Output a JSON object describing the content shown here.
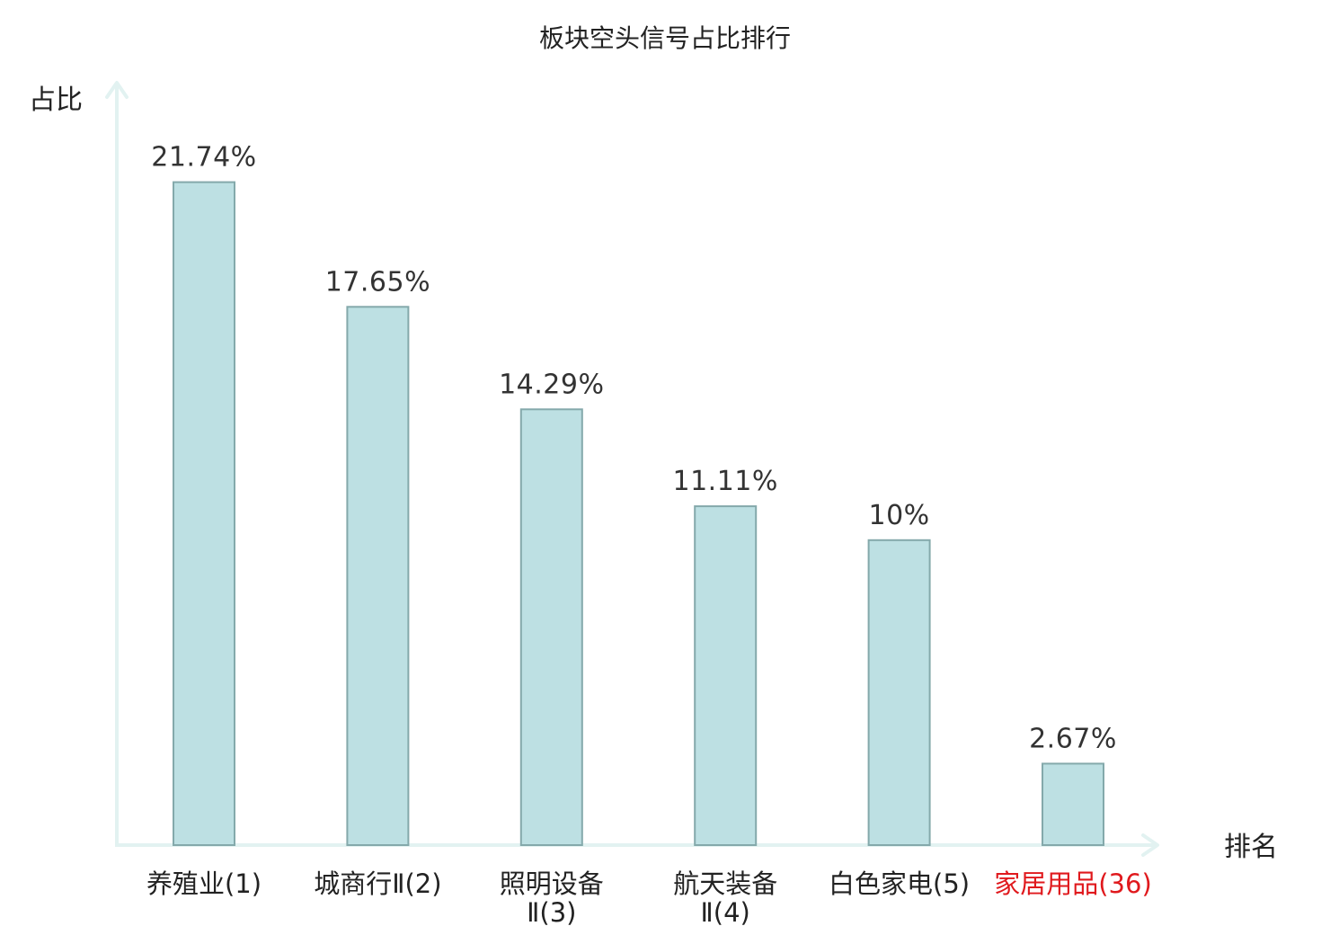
{
  "chart_data": {
    "type": "bar",
    "title": "板块空头信号占比排行",
    "ylabel": "占比",
    "xlabel": "排名",
    "ylim": [
      0,
      25
    ],
    "grid": false,
    "categories": [
      {
        "name": "养殖业",
        "rank": "(1)",
        "lines": [
          "养殖业(1)"
        ],
        "highlight": false
      },
      {
        "name": "城商行Ⅱ",
        "rank": "(2)",
        "lines": [
          "城商行Ⅱ(2)"
        ],
        "highlight": false
      },
      {
        "name": "照明设备Ⅱ",
        "rank": "(3)",
        "lines": [
          "照明设备",
          "Ⅱ(3)"
        ],
        "highlight": false
      },
      {
        "name": "航天装备Ⅱ",
        "rank": "(4)",
        "lines": [
          "航天装备",
          "Ⅱ(4)"
        ],
        "highlight": false
      },
      {
        "name": "白色家电",
        "rank": "(5)",
        "lines": [
          "白色家电(5)"
        ],
        "highlight": false
      },
      {
        "name": "家居用品",
        "rank": "(36)",
        "lines": [
          "家居用品(36)"
        ],
        "highlight": true
      }
    ],
    "values": [
      21.74,
      17.65,
      14.29,
      11.11,
      10,
      2.67
    ],
    "value_labels": [
      "21.74%",
      "17.65%",
      "14.29%",
      "11.11%",
      "10%",
      "2.67%"
    ],
    "colors": {
      "bar_fill": "#bde0e3",
      "bar_stroke": "#84a9ab",
      "axis": "#e2f2f1",
      "highlight_label": "#e0191d"
    }
  }
}
